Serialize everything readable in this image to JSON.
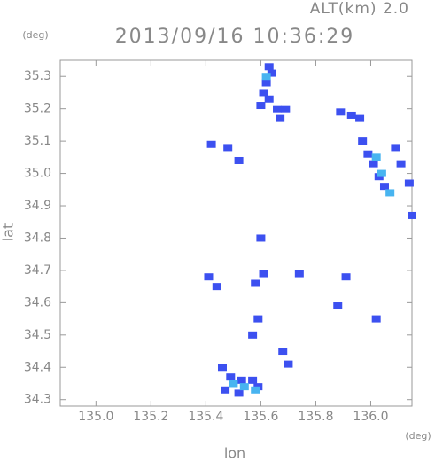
{
  "chart_data": {
    "type": "scatter",
    "title": "2013/09/16 10:36:29",
    "subtitle": "ALT(km) 2.0",
    "x_label": "lon",
    "y_label": "lat",
    "x_unit": "(deg)",
    "y_unit": "(deg)",
    "xlim": [
      134.87,
      136.15
    ],
    "ylim": [
      34.28,
      35.35
    ],
    "xticks": [
      {
        "value": 135,
        "label": "135.0"
      },
      135.2,
      135.4,
      135.6,
      135.8,
      {
        "value": 136,
        "label": "136.0"
      }
    ],
    "yticks": [
      34.3,
      34.4,
      34.5,
      34.6,
      34.7,
      34.8,
      34.9,
      {
        "value": 35,
        "label": "35.0"
      },
      35.1,
      35.2,
      35.3
    ],
    "series": [
      {
        "color": "#3c50f0",
        "x": [
          135.63,
          135.64,
          135.62,
          135.61,
          135.63,
          135.66,
          135.69,
          135.6,
          135.67,
          135.89,
          135.93,
          135.96,
          135.97,
          135.99,
          136.01,
          136.03,
          136.05,
          136.09,
          136.11,
          136.14,
          136.15,
          135.42,
          135.48,
          135.52,
          135.6,
          135.41,
          135.44,
          135.58,
          135.61,
          135.74,
          135.91,
          135.88,
          136.02,
          135.59,
          135.57,
          135.68,
          135.7,
          135.46,
          135.49,
          135.53,
          135.57,
          135.47,
          135.52,
          135.59
        ],
        "values": [
          35.33,
          35.31,
          35.28,
          35.25,
          35.23,
          35.2,
          35.2,
          35.21,
          35.17,
          35.19,
          35.18,
          35.17,
          35.1,
          35.06,
          35.03,
          34.99,
          34.96,
          35.08,
          35.03,
          34.97,
          34.87,
          35.09,
          35.08,
          35.04,
          34.8,
          34.68,
          34.65,
          34.66,
          34.69,
          34.69,
          34.68,
          34.59,
          34.55,
          34.55,
          34.5,
          34.45,
          34.41,
          34.4,
          34.37,
          34.36,
          34.36,
          34.33,
          34.32,
          34.34
        ]
      },
      {
        "color": "#48b4f0",
        "x": [
          136.02,
          136.04,
          136.07,
          135.5,
          135.54,
          135.58,
          135.62
        ],
        "values": [
          35.05,
          35.0,
          34.94,
          34.35,
          34.34,
          34.33,
          35.3
        ]
      }
    ]
  }
}
